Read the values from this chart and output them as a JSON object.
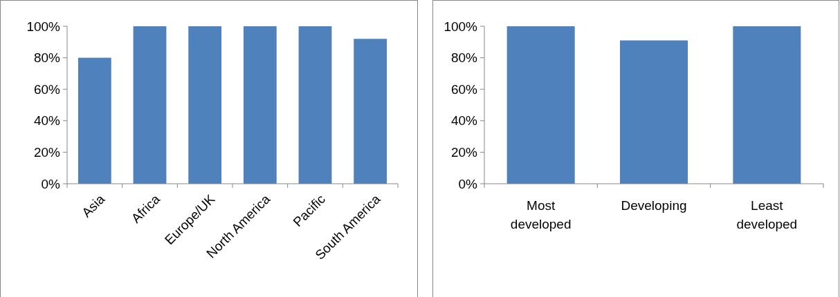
{
  "chart_data": [
    {
      "type": "bar",
      "categories": [
        "Asia",
        "Africa",
        "Europe/UK",
        "North America",
        "Pacific",
        "South America"
      ],
      "values": [
        80,
        100,
        100,
        100,
        100,
        92
      ],
      "color": "#4f81bd",
      "ylim": [
        0,
        100
      ],
      "yticks": [
        {
          "value": 0,
          "label": "0%"
        },
        {
          "value": 20,
          "label": "20%"
        },
        {
          "value": 40,
          "label": "40%"
        },
        {
          "value": 60,
          "label": "60%"
        },
        {
          "value": 80,
          "label": "80%"
        },
        {
          "value": 100,
          "label": "100%"
        }
      ]
    },
    {
      "type": "bar",
      "categories": [
        "Most developed",
        "Developing",
        "Least developed"
      ],
      "values": [
        100,
        91,
        100
      ],
      "color": "#4f81bd",
      "ylim": [
        0,
        100
      ],
      "yticks": [
        {
          "value": 0,
          "label": "0%"
        },
        {
          "value": 20,
          "label": "20%"
        },
        {
          "value": 40,
          "label": "40%"
        },
        {
          "value": 60,
          "label": "60%"
        },
        {
          "value": 80,
          "label": "80%"
        },
        {
          "value": 100,
          "label": "100%"
        }
      ]
    }
  ]
}
